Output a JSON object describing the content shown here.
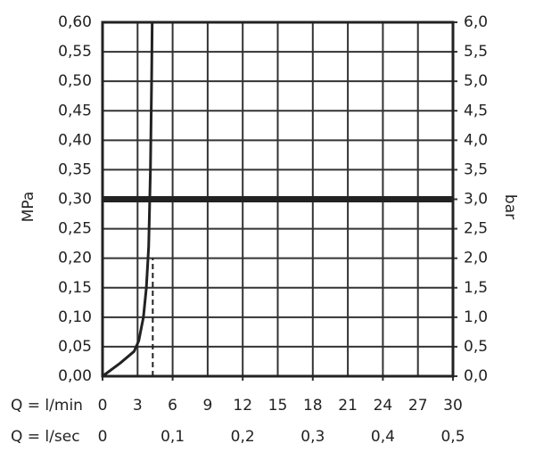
{
  "chart_data": {
    "type": "line",
    "xlabel": "Q = l/min",
    "x2label": "Q = l/sec",
    "ylabel": "MPa",
    "y2label": "bar",
    "xlim": [
      0,
      30
    ],
    "xticks": [
      0,
      3,
      6,
      9,
      12,
      15,
      18,
      21,
      24,
      27,
      30
    ],
    "x2lim": [
      0,
      0.5
    ],
    "x2ticks": [
      0,
      {
        "value": 0.1,
        "label": "0,1"
      },
      {
        "value": 0.2,
        "label": "0,2"
      },
      {
        "value": 0.3,
        "label": "0,3"
      },
      {
        "value": 0.4,
        "label": "0,4"
      },
      {
        "value": 0.5,
        "label": "0,5"
      }
    ],
    "ylim": [
      0,
      0.6
    ],
    "yticks": [
      {
        "value": 0,
        "label": "0,00"
      },
      {
        "value": 0.05,
        "label": "0,05"
      },
      {
        "value": 0.1,
        "label": "0,10"
      },
      {
        "value": 0.15,
        "label": "0,15"
      },
      {
        "value": 0.2,
        "label": "0,20"
      },
      {
        "value": 0.25,
        "label": "0,25"
      },
      {
        "value": 0.3,
        "label": "0,30"
      },
      {
        "value": 0.35,
        "label": "0,35"
      },
      {
        "value": 0.4,
        "label": "0,40"
      },
      {
        "value": 0.45,
        "label": "0,45"
      },
      {
        "value": 0.5,
        "label": "0,50"
      },
      {
        "value": 0.55,
        "label": "0,55"
      },
      {
        "value": 0.6,
        "label": "0,60"
      }
    ],
    "y2lim": [
      0,
      6
    ],
    "y2ticks": [
      {
        "value": 0,
        "label": "0,0"
      },
      {
        "value": 0.5,
        "label": "0,5"
      },
      {
        "value": 1,
        "label": "1,0"
      },
      {
        "value": 1.5,
        "label": "1,5"
      },
      {
        "value": 2,
        "label": "2,0"
      },
      {
        "value": 2.5,
        "label": "2,5"
      },
      {
        "value": 3,
        "label": "3,0"
      },
      {
        "value": 3.5,
        "label": "3,5"
      },
      {
        "value": 4,
        "label": "4,0"
      },
      {
        "value": 4.5,
        "label": "4,5"
      },
      {
        "value": 5,
        "label": "5,0"
      },
      {
        "value": 5.5,
        "label": "5,5"
      },
      {
        "value": 6,
        "label": "6,0"
      }
    ],
    "grid": true,
    "series": [
      {
        "color": "#222222",
        "width": 3,
        "dashed": false,
        "x": [
          0,
          1.5,
          2.7,
          3.1,
          3.5,
          3.75,
          3.95,
          4.1,
          4.2,
          4.25
        ],
        "values": [
          0,
          0.022,
          0.042,
          0.06,
          0.1,
          0.15,
          0.22,
          0.35,
          0.5,
          0.6
        ]
      },
      {
        "color": "#222222",
        "width": 2,
        "dashed": true,
        "x": [
          4.3,
          4.3
        ],
        "values": [
          0,
          0.2
        ]
      },
      {
        "color": "#222222",
        "width": 7,
        "dashed": false,
        "x": [
          0,
          30
        ],
        "values": [
          0.3,
          0.3
        ]
      }
    ]
  }
}
